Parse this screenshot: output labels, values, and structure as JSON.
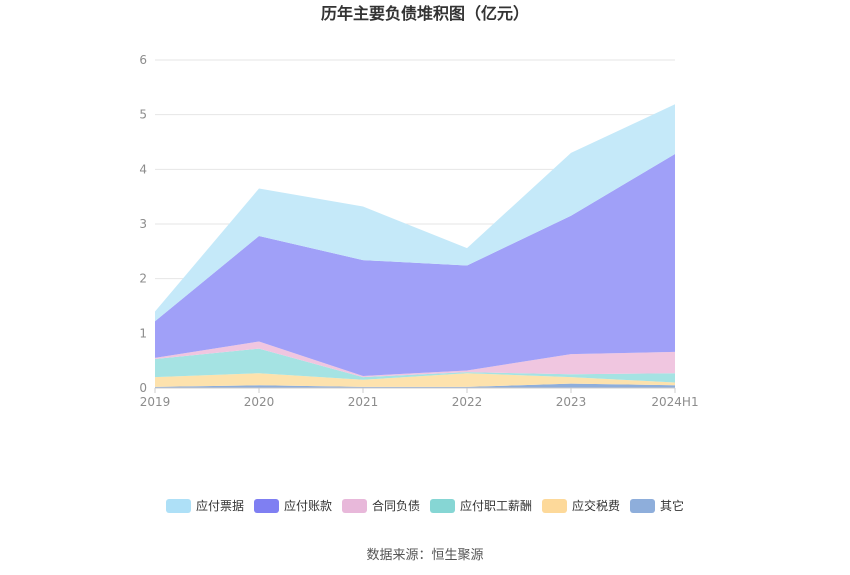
{
  "chart_data": {
    "type": "area",
    "stacked": true,
    "title": "历年主要负债堆积图（亿元）",
    "categories": [
      "2019",
      "2020",
      "2021",
      "2022",
      "2023",
      "2024H1"
    ],
    "ylim": [
      0,
      6
    ],
    "yticks": [
      "0",
      "1",
      "2",
      "3",
      "4",
      "5",
      "6"
    ],
    "grid": true,
    "legend_position": "bottom",
    "series": [
      {
        "name": "其它",
        "color": "#8eaedb",
        "values": [
          0.02,
          0.05,
          0.02,
          0.02,
          0.08,
          0.05
        ]
      },
      {
        "name": "应交税费",
        "color": "#fde2ad",
        "values": [
          0.18,
          0.22,
          0.13,
          0.25,
          0.12,
          0.05
        ]
      },
      {
        "name": "应付职工薪酬",
        "color": "#a5e3e3",
        "values": [
          0.33,
          0.45,
          0.05,
          0.02,
          0.05,
          0.17
        ]
      },
      {
        "name": "合同负债",
        "color": "#f0c6e0",
        "values": [
          0.02,
          0.13,
          0.02,
          0.03,
          0.37,
          0.39
        ]
      },
      {
        "name": "应付账款",
        "color": "#a0a0f8",
        "values": [
          0.67,
          1.93,
          2.12,
          1.92,
          2.53,
          3.62
        ]
      },
      {
        "name": "应付票据",
        "color": "#c5e9f9",
        "values": [
          0.18,
          0.87,
          0.98,
          0.32,
          1.15,
          0.91
        ]
      }
    ],
    "legend": [
      {
        "name": "应付票据",
        "color": "#aee0f7"
      },
      {
        "name": "应付账款",
        "color": "#7f7ff2"
      },
      {
        "name": "合同负债",
        "color": "#e8b8da"
      },
      {
        "name": "应付职工薪酬",
        "color": "#86d6d4"
      },
      {
        "name": "应交税费",
        "color": "#fdd99a"
      },
      {
        "name": "其它",
        "color": "#8eaedb"
      }
    ]
  },
  "source_text": "数据来源：恒生聚源"
}
